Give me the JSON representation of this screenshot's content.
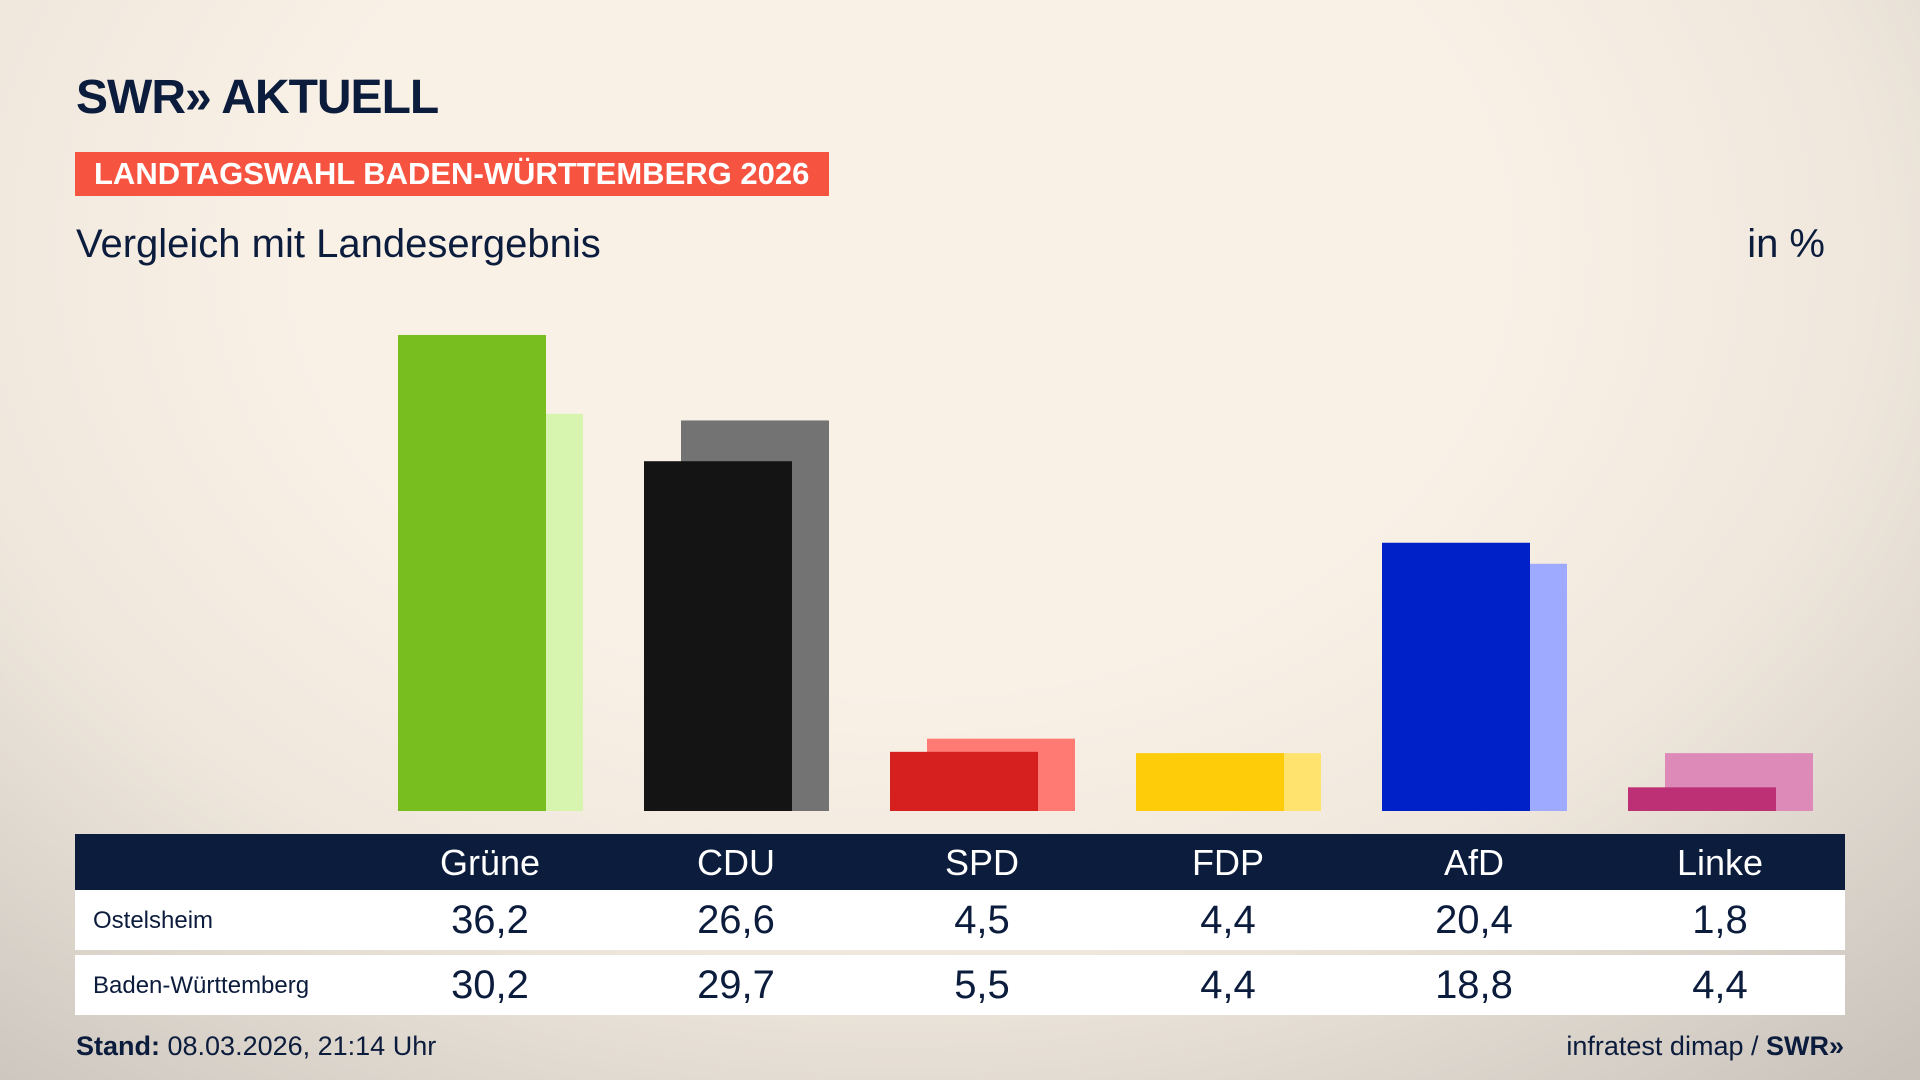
{
  "header": {
    "logo": "SWR» AKTUELL",
    "banner": "LANDTAGSWAHL BADEN-WÜRTTEMBERG 2026",
    "subtitle": "Vergleich mit Landesergebnis",
    "unit": "in %"
  },
  "footer": {
    "stand_label": "Stand:",
    "stand_value": " 08.03.2026, 21:14 Uhr",
    "source": "infratest dimap / ",
    "source_logo": "SWR»"
  },
  "chart_data": {
    "type": "bar",
    "categories": [
      "Grüne",
      "CDU",
      "SPD",
      "FDP",
      "AfD",
      "Linke"
    ],
    "series": [
      {
        "name": "Ostelsheim",
        "values": [
          36.2,
          26.6,
          4.5,
          4.4,
          20.4,
          1.8
        ],
        "labels": [
          "36,2",
          "26,6",
          "4,5",
          "4,4",
          "20,4",
          "1,8"
        ],
        "colors": [
          "#78be1e",
          "#141414",
          "#d61f1f",
          "#ffcc0a",
          "#0020c8",
          "#be3075"
        ]
      },
      {
        "name": "Baden-Württemberg",
        "values": [
          30.2,
          29.7,
          5.5,
          4.4,
          18.8,
          4.4
        ],
        "labels": [
          "30,2",
          "29,7",
          "5,5",
          "4,4",
          "18,8",
          "4,4"
        ],
        "colors": [
          "#d8f5b0",
          "#737373",
          "#ff7a73",
          "#ffe36e",
          "#9eaaff",
          "#de8ab8"
        ]
      }
    ],
    "grid": false
  }
}
